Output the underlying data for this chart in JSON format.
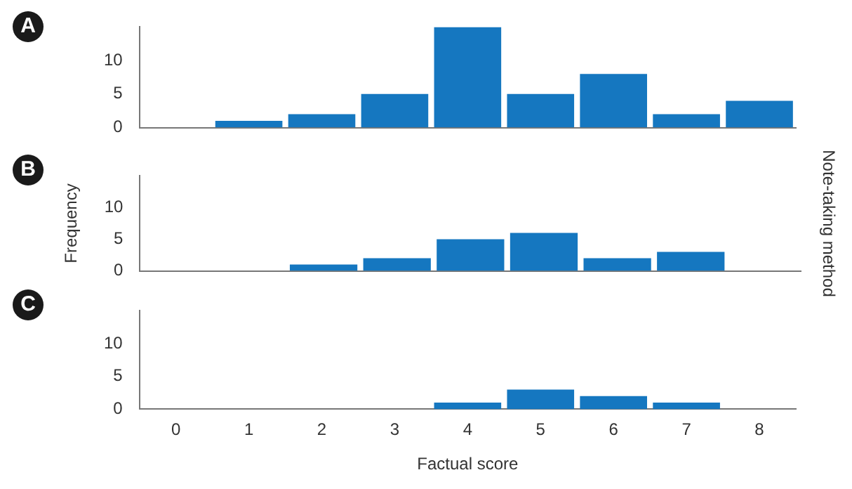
{
  "chart_data": [
    {
      "type": "bar",
      "title": "A",
      "categories": [
        "0",
        "1",
        "2",
        "3",
        "4",
        "5",
        "6",
        "7",
        "8"
      ],
      "values": [
        0,
        1,
        2,
        5,
        15,
        5,
        8,
        2,
        4
      ],
      "color": "#1577c0",
      "ylim": [
        0,
        15
      ],
      "yticks": [
        0,
        5,
        10
      ],
      "grid": false,
      "legend": false,
      "tick_labels": "y"
    },
    {
      "type": "bar",
      "title": "B",
      "ylabel": "Frequency",
      "y2label": "Note-taking method",
      "categories": [
        "0",
        "1",
        "2",
        "3",
        "4",
        "5",
        "6",
        "7",
        "8"
      ],
      "values": [
        0,
        0,
        1,
        2,
        5,
        6,
        2,
        3,
        0
      ],
      "color": "#1577c0",
      "ylim": [
        0,
        15
      ],
      "yticks": [
        0,
        5,
        10
      ],
      "grid": false,
      "legend": false,
      "tick_labels": "y"
    },
    {
      "type": "bar",
      "title": "C",
      "xlabel": "Factual score",
      "categories": [
        "0",
        "1",
        "2",
        "3",
        "4",
        "5",
        "6",
        "7",
        "8"
      ],
      "values": [
        0,
        0,
        0,
        0,
        1,
        3,
        2,
        1,
        0
      ],
      "color": "#1577c0",
      "ylim": [
        0,
        15
      ],
      "yticks": [
        0,
        5,
        10
      ],
      "grid": false,
      "legend": false
    }
  ]
}
